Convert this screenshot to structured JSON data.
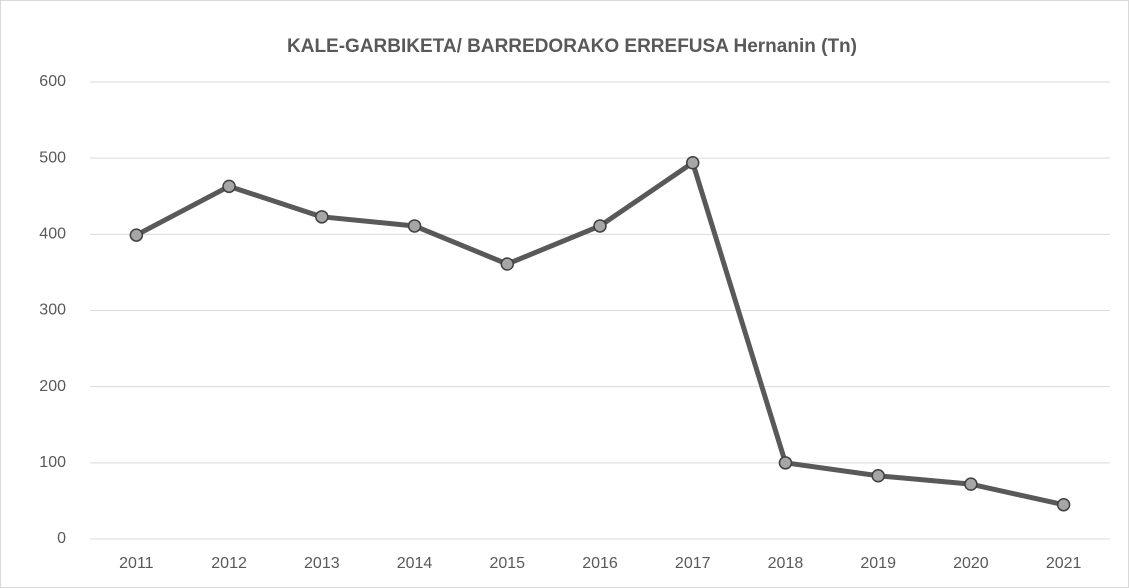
{
  "chart_data": {
    "type": "line",
    "title": "KALE-GARBIKETA/ BARREDORAKO ERREFUSA Hernanin (Tn)",
    "categories": [
      "2011",
      "2012",
      "2013",
      "2014",
      "2015",
      "2016",
      "2017",
      "2018",
      "2019",
      "2020",
      "2021"
    ],
    "values": [
      399,
      463,
      423,
      411,
      361,
      411,
      494,
      100,
      83,
      72,
      45
    ],
    "color": "#595959",
    "marker_color": "#a6a6a6",
    "ylim": [
      0,
      600
    ],
    "yticks": [
      0,
      100,
      200,
      300,
      400,
      500,
      600
    ],
    "grid": true
  }
}
